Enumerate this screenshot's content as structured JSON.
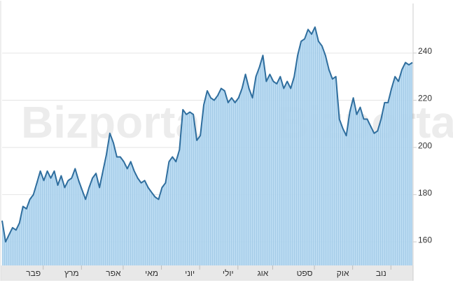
{
  "chart_data": {
    "type": "area",
    "watermark": "Bizportal",
    "categories": [
      null,
      null,
      null,
      null,
      null,
      null,
      null,
      null,
      null,
      "פבר",
      null,
      null,
      null,
      null,
      null,
      null,
      null,
      null,
      null,
      null,
      "מרץ",
      null,
      null,
      null,
      null,
      null,
      null,
      null,
      null,
      null,
      null,
      null,
      "אפר",
      null,
      null,
      null,
      null,
      null,
      null,
      null,
      null,
      null,
      null,
      "מאי",
      null,
      null,
      null,
      null,
      null,
      null,
      null,
      null,
      null,
      null,
      "יוני",
      null,
      null,
      null,
      null,
      null,
      null,
      null,
      null,
      null,
      null,
      "יולי",
      null,
      null,
      null,
      null,
      null,
      null,
      null,
      null,
      null,
      "אוג",
      null,
      null,
      null,
      null,
      null,
      null,
      null,
      null,
      null,
      null,
      null,
      "ספט",
      null,
      null,
      null,
      null,
      null,
      null,
      null,
      null,
      null,
      null,
      "אוק",
      null,
      null,
      null,
      null,
      null,
      null,
      null,
      null,
      null,
      null,
      "נוב",
      null,
      null,
      null,
      null,
      null,
      null,
      null,
      null,
      null
    ],
    "values": [
      169,
      160,
      163,
      166,
      165,
      168,
      175,
      174,
      178,
      180,
      185,
      190,
      186,
      190,
      187,
      190,
      184,
      188,
      183,
      186,
      187,
      191,
      186,
      182,
      178,
      183,
      187,
      189,
      183,
      190,
      197,
      206,
      202,
      196,
      196,
      194,
      191,
      194,
      190,
      187,
      185,
      186,
      183,
      181,
      179,
      178,
      183,
      185,
      194,
      196,
      194,
      199,
      216,
      214,
      215,
      214,
      203,
      205,
      218,
      224,
      221,
      220,
      222,
      225,
      224,
      219,
      221,
      219,
      221,
      225,
      231,
      225,
      221,
      230,
      234,
      239,
      228,
      231,
      228,
      227,
      230,
      225,
      228,
      225,
      230,
      239,
      245,
      246,
      250,
      248,
      251,
      245,
      243,
      239,
      233,
      229,
      230,
      212,
      208,
      205,
      215,
      221,
      214,
      217,
      212,
      212,
      209,
      206,
      207,
      212,
      219,
      219,
      225,
      230,
      228,
      233,
      236,
      235,
      236
    ],
    "color": "#2f6e9e",
    "fill": "#add3ee",
    "ylim": [
      150,
      261
    ],
    "yticks": [
      160,
      180,
      200,
      220,
      240
    ],
    "grid": true
  }
}
